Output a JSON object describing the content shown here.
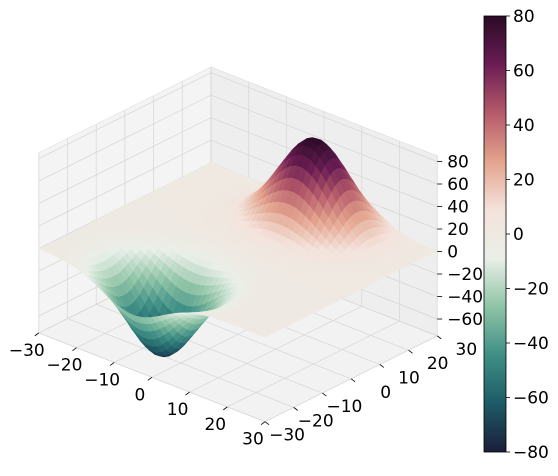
{
  "chart_data": {
    "type": "surface3d",
    "title": "",
    "x": {
      "range": [
        -30,
        30
      ],
      "ticks": [
        -30,
        -20,
        -10,
        0,
        10,
        20,
        30
      ],
      "tick_labels": [
        "−30",
        "−20",
        "−10",
        "0",
        "10",
        "20",
        "30"
      ]
    },
    "y": {
      "range": [
        -30,
        30
      ],
      "ticks": [
        -30,
        -20,
        -10,
        0,
        10,
        20,
        30
      ],
      "tick_labels": [
        "−30",
        "−20",
        "−10",
        "0",
        "10",
        "20",
        "30"
      ]
    },
    "z": {
      "range": [
        -75,
        85
      ],
      "ticks": [
        -60,
        -40,
        -20,
        0,
        20,
        40,
        60,
        80
      ],
      "tick_labels": [
        "−60",
        "−40",
        "−20",
        "0",
        "20",
        "40",
        "60",
        "80"
      ]
    },
    "surface": {
      "description_values": {
        "peak": {
          "x": 5,
          "y": 20,
          "z": 80
        },
        "trough": {
          "x": -5,
          "y": -20,
          "z": -75
        }
      },
      "base_shape": "saddle-like dipole: single positive peak and single negative trough on an otherwise near-zero plane"
    },
    "grid": true,
    "colormap": "diverging teal-white-magenta",
    "colorbar": {
      "position": "right",
      "range": [
        -80,
        80
      ],
      "ticks": [
        -80,
        -60,
        -40,
        -20,
        0,
        20,
        40,
        60,
        80
      ],
      "tick_labels": [
        "−80",
        "−60",
        "−40",
        "−20",
        "0",
        "20",
        "40",
        "60",
        "80"
      ],
      "stops": [
        "#1c1d3a",
        "#1d5b66",
        "#3f8f86",
        "#8fc4a6",
        "#e9efe8",
        "#f4e3dc",
        "#e3a38d",
        "#b55a6a",
        "#6a1d53",
        "#2a0a27"
      ]
    }
  }
}
